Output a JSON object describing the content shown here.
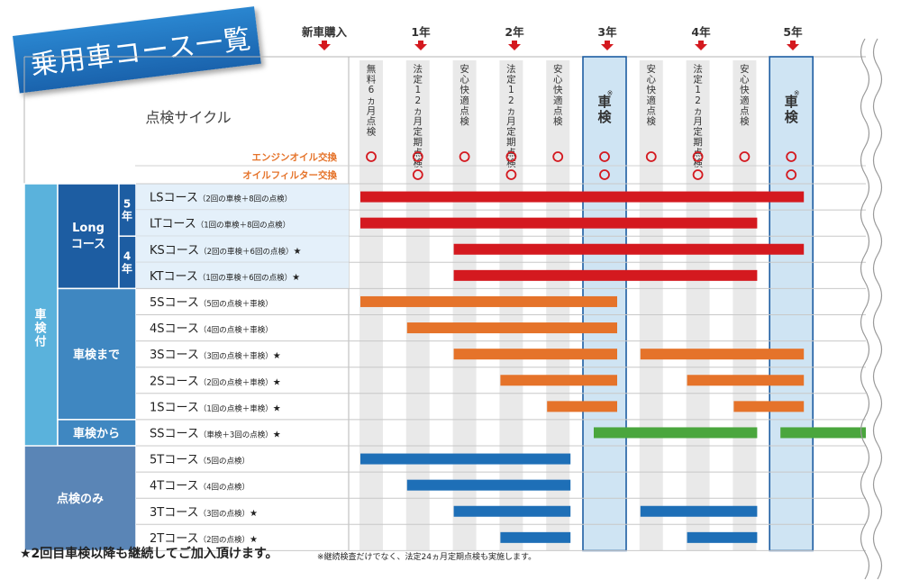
{
  "title": "乗用車コース一覧",
  "footer": {
    "main": "★2回目車検以降も継続してご加入頂けます。",
    "note": "※継続検査だけでなく、法定24ヵ月定期点検も実施します。"
  },
  "chart_data": {
    "type": "gantt",
    "timeline_markers": [
      "新車購入",
      "1年",
      "2年",
      "3年",
      "4年",
      "5年"
    ],
    "cycle_header": "点検サイクル",
    "columns": [
      "無料6ヵ月点検",
      "法定12ヵ月定期点検",
      "安心快適点検",
      "法定12ヵ月定期点検",
      "安心快適点検",
      "車検",
      "安心快適点検",
      "法定12ヵ月定期点検",
      "安心快適点検",
      "車検"
    ],
    "shaken_columns": [
      5,
      9
    ],
    "shaken_mark": "※",
    "maintenance_rows": [
      {
        "label": "エンジンオイル交換",
        "mark": "○",
        "columns": [
          0,
          1,
          2,
          3,
          4,
          5,
          6,
          7,
          8,
          9
        ]
      },
      {
        "label": "オイルフィルター交換",
        "mark": "○",
        "columns": [
          1,
          3,
          5,
          7,
          9
        ]
      }
    ],
    "groups": [
      {
        "label": "車検付",
        "rows": [
          0,
          10
        ]
      },
      {
        "label": "Longコース",
        "rows": [
          0,
          3
        ]
      },
      {
        "label": "5年",
        "rows": [
          0,
          1
        ]
      },
      {
        "label": "4年",
        "rows": [
          2,
          3
        ]
      },
      {
        "label": "車検まで",
        "rows": [
          4,
          8
        ]
      },
      {
        "label": "車検から",
        "rows": [
          9,
          9
        ]
      },
      {
        "label": "点検のみ",
        "rows": [
          10,
          13
        ]
      }
    ],
    "courses": [
      {
        "name": "LSコース",
        "detail": "（2回の車検＋8回の点検）",
        "star": "",
        "color": "#d4191f",
        "segments": [
          [
            0,
            9
          ]
        ]
      },
      {
        "name": "LTコース",
        "detail": "（1回の車検＋8回の点検）",
        "star": "",
        "color": "#d4191f",
        "segments": [
          [
            0,
            8
          ]
        ]
      },
      {
        "name": "KSコース",
        "detail": "（2回の車検＋6回の点検）",
        "star": "★",
        "color": "#d4191f",
        "segments": [
          [
            2,
            9
          ]
        ]
      },
      {
        "name": "KTコース",
        "detail": "（1回の車検＋6回の点検）",
        "star": "★",
        "color": "#d4191f",
        "segments": [
          [
            2,
            8
          ]
        ]
      },
      {
        "name": "5Sコース",
        "detail": "（5回の点検＋車検）",
        "star": "",
        "color": "#e5732a",
        "segments": [
          [
            0,
            5
          ]
        ]
      },
      {
        "name": "4Sコース",
        "detail": "（4回の点検＋車検）",
        "star": "",
        "color": "#e5732a",
        "segments": [
          [
            1,
            5
          ]
        ]
      },
      {
        "name": "3Sコース",
        "detail": "（3回の点検＋車検）",
        "star": "★",
        "color": "#e5732a",
        "segments": [
          [
            2,
            5
          ],
          [
            6,
            9
          ]
        ]
      },
      {
        "name": "2Sコース",
        "detail": "（2回の点検＋車検）",
        "star": "★",
        "color": "#e5732a",
        "segments": [
          [
            3,
            5
          ],
          [
            7,
            9
          ]
        ]
      },
      {
        "name": "1Sコース",
        "detail": "（1回の点検＋車検）",
        "star": "★",
        "color": "#e5732a",
        "segments": [
          [
            4,
            5
          ],
          [
            8,
            9
          ]
        ]
      },
      {
        "name": "SSコース",
        "detail": "（車検＋3回の点検）",
        "star": "★",
        "color": "#4aa63d",
        "segments": [
          [
            5,
            8
          ],
          [
            9,
            10
          ]
        ]
      },
      {
        "name": "5Tコース",
        "detail": "（5回の点検）",
        "star": "",
        "color": "#1e6fb7",
        "segments": [
          [
            0,
            4
          ]
        ]
      },
      {
        "name": "4Tコース",
        "detail": "（4回の点検）",
        "star": "",
        "color": "#1e6fb7",
        "segments": [
          [
            1,
            4
          ]
        ]
      },
      {
        "name": "3Tコース",
        "detail": "（3回の点検）",
        "star": "★",
        "color": "#1e6fb7",
        "segments": [
          [
            2,
            4
          ],
          [
            6,
            8
          ]
        ]
      },
      {
        "name": "2Tコース",
        "detail": "（2回の点検）",
        "star": "★",
        "color": "#1e6fb7",
        "segments": [
          [
            3,
            4
          ],
          [
            7,
            8
          ]
        ]
      }
    ],
    "colors": {
      "long": "#1d5da2",
      "shaken_made": "#3f87c1",
      "shaken_kara": "#3f87c1",
      "tenken_nomi": "#5a85b6",
      "left_band": "#5ab2dc",
      "highlight": "#cfe4f3",
      "marker_arrow": "#d4191f",
      "maintenance_text": "#e5732a"
    }
  }
}
